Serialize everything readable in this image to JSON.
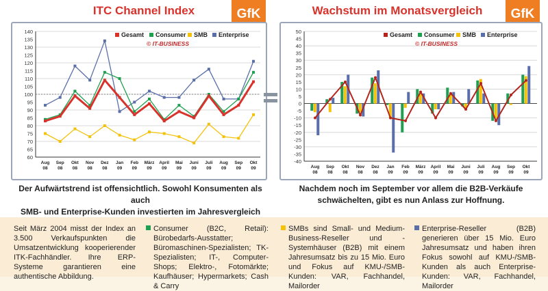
{
  "left": {
    "title": "ITC Channel Index",
    "logo": "GfK",
    "watermark": "© IT-BUSINESS",
    "caption": [
      "Der Aufwärtstrend ist offensichtlich. Sowohl Konsumenten als auch",
      "SMB- und Enterprise-Kunden investierten im Jahresvergleich mehr."
    ]
  },
  "right": {
    "title": "Wachstum im Monatsvergleich",
    "logo": "GfK",
    "watermark": "© IT-BUSINESS",
    "caption": [
      "Nachdem noch im September vor allem die B2B-Verkäufe",
      "schwächelten, gibt es nun Anlass zur Hoffnung."
    ]
  },
  "chart_data": [
    {
      "type": "line",
      "x": [
        "Aug 08",
        "Sep 08",
        "Okt 08",
        "Nov 08",
        "Dez 08",
        "Jan 09",
        "Feb 09",
        "März 09",
        "April 09",
        "Mai 09",
        "Juni 09",
        "Juli 09",
        "Aug 09",
        "Sep 09",
        "Okt 09"
      ],
      "ylim": [
        60,
        140
      ],
      "yticks": [
        60,
        65,
        70,
        75,
        80,
        85,
        90,
        95,
        100,
        105,
        110,
        115,
        120,
        125,
        130,
        135,
        140
      ],
      "reference_line": 100,
      "legend_placement": "top-right",
      "series": [
        {
          "name": "Gesamt",
          "color": "#d7332c",
          "values": [
            83,
            86,
            99,
            91,
            109,
            98,
            87,
            94,
            83,
            89,
            85,
            99,
            87,
            93,
            108
          ]
        },
        {
          "name": "Consumer",
          "color": "#1fa050",
          "values": [
            84,
            87,
            102,
            93,
            114,
            110,
            89,
            97,
            84,
            93,
            86,
            100,
            89,
            97,
            114
          ]
        },
        {
          "name": "SMB",
          "color": "#f4c20d",
          "values": [
            75,
            70,
            78,
            73,
            80,
            74,
            71,
            76,
            75,
            73,
            69,
            81,
            73,
            72,
            87
          ]
        },
        {
          "name": "Enterprise",
          "color": "#5a6fa8",
          "values": [
            93,
            98,
            118,
            109,
            134,
            89,
            95,
            102,
            98,
            98,
            109,
            116,
            97,
            97,
            121
          ]
        }
      ]
    },
    {
      "type": "bar",
      "categories": [
        "Aug 08",
        "Sep 08",
        "Okt 08",
        "Nov 08",
        "Dez 08",
        "Jan 09",
        "Feb 09",
        "März 09",
        "April 09",
        "Mai 09",
        "Juni 09",
        "Juli 09",
        "Aug 09",
        "Sep 09",
        "Okt 09"
      ],
      "ylim": [
        -40,
        50
      ],
      "yticks": [
        -40,
        -35,
        -30,
        -25,
        -20,
        -15,
        -10,
        -5,
        0,
        5,
        10,
        15,
        20,
        25,
        30,
        35,
        40,
        45,
        50
      ],
      "legend_placement": "top-right",
      "line_series": "Gesamt",
      "series": [
        {
          "name": "Gesamt",
          "color": "#b3261e",
          "values": [
            -10,
            3,
            15,
            -8,
            18,
            -10,
            -12,
            8,
            -10,
            7,
            -4,
            14,
            -12,
            6,
            16
          ]
        },
        {
          "name": "Consumer",
          "color": "#1fa050",
          "values": [
            -5,
            3,
            15,
            -7,
            18,
            -1,
            -20,
            10,
            -7,
            11,
            -2,
            16,
            -12,
            7,
            20
          ]
        },
        {
          "name": "SMB",
          "color": "#f4c20d",
          "values": [
            -6,
            -6,
            12,
            -6,
            14,
            -10,
            -3,
            7,
            -4,
            6,
            -4,
            17,
            -10,
            -1,
            19
          ]
        },
        {
          "name": "Enterprise",
          "color": "#5a6fa8",
          "values": [
            -22,
            4,
            20,
            -9,
            23,
            -34,
            8,
            7,
            -4,
            8,
            10,
            7,
            -15,
            0,
            26
          ]
        }
      ]
    }
  ],
  "footer": {
    "intro": "Seit März 2004 misst der Index an 3.500 Verkaufspunkten die Umsatzentwicklung kooperierender ITK-Fachhändler. Ihre ERP-Systeme garantieren eine authentische Abbildung.",
    "consumer": "Consumer (B2C, Retail): Bürobedarfs-Ausstatter; Büromaschinen-Spezialisten; TK-Spezialisten; IT-, Computer-Shops; Elektro-, Fotomärkte; Kaufhäuser; Hypermarkets; Cash & Carry",
    "smb": "SMBs sind Small- und Medium-Business-Reseller und -Systemhäuser (B2B) mit einem Jahresumsatz bis zu 15 Mio. Euro und Fokus auf KMU-/SMB-Kunden: VAR, Fachhandel, Mailorder",
    "enterprise": "Enterprise-Reseller (B2B) generieren über 15 Mio. Euro Jahresumsatz und haben ihren Fokus sowohl auf KMU-/SMB-Kunden als auch Enterprise-Kunden: VAR, Fachhandel, Mailorder",
    "colors": {
      "consumer": "#1fa050",
      "smb": "#f4c20d",
      "enterprise": "#5a6fa8"
    }
  }
}
